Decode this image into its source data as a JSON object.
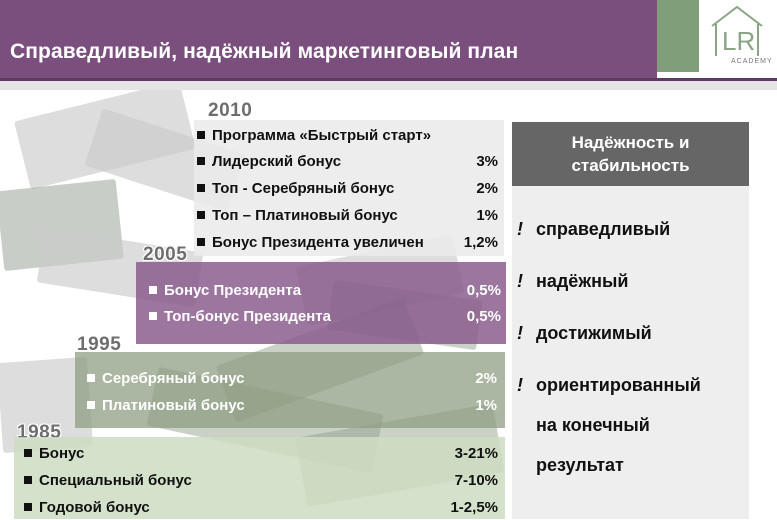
{
  "header": {
    "title": "Справедливый, надёжный маркетинговый план",
    "logo_text": "ACADEMY"
  },
  "blocks": {
    "y2010": {
      "year": "2010",
      "items": [
        {
          "label": "Программа «Быстрый старт»",
          "value": ""
        },
        {
          "label": "Лидерский бонус",
          "value": "3%"
        },
        {
          "label": "Топ - Серебряный бонус",
          "value": "2%"
        },
        {
          "label": "Топ – Платиновый бонус",
          "value": "1%"
        },
        {
          "label": "Бонус Президента увеличен",
          "value": "1,2%"
        }
      ]
    },
    "y2005": {
      "year": "2005",
      "items": [
        {
          "label": "Бонус Президента",
          "value": "0,5%"
        },
        {
          "label": "Топ-бонус Президента",
          "value": "0,5%"
        }
      ]
    },
    "y1995": {
      "year": "1995",
      "items": [
        {
          "label": "Серебряный бонус",
          "value": "2%"
        },
        {
          "label": "Платиновый бонус",
          "value": "1%"
        }
      ]
    },
    "y1985": {
      "year": "1985",
      "items": [
        {
          "label": "Бонус",
          "value": "3-21%"
        },
        {
          "label": "Специальный бонус",
          "value": "7-10%"
        },
        {
          "label": "Годовой бонус",
          "value": "1-2,5%"
        }
      ]
    }
  },
  "panel": {
    "title_line1": "Надёжность и",
    "title_line2": "стабильность",
    "mark": "!",
    "items": [
      {
        "line1": "справедливый"
      },
      {
        "line1": "надёжный"
      },
      {
        "line1": "достижимый"
      },
      {
        "line1": "ориентированный",
        "line2": "на конечный",
        "line3": "результат"
      }
    ]
  },
  "colors": {
    "header_purple": "#7a4f7e",
    "header_green": "#7f9e79",
    "block_2005": "#87588a",
    "block_1995": "#8c9b80",
    "block_1985": "#cedcc2",
    "panel_head": "#666666"
  },
  "icons": {
    "bullet": "square-bullet-icon",
    "logo": "lr-academy-logo"
  }
}
